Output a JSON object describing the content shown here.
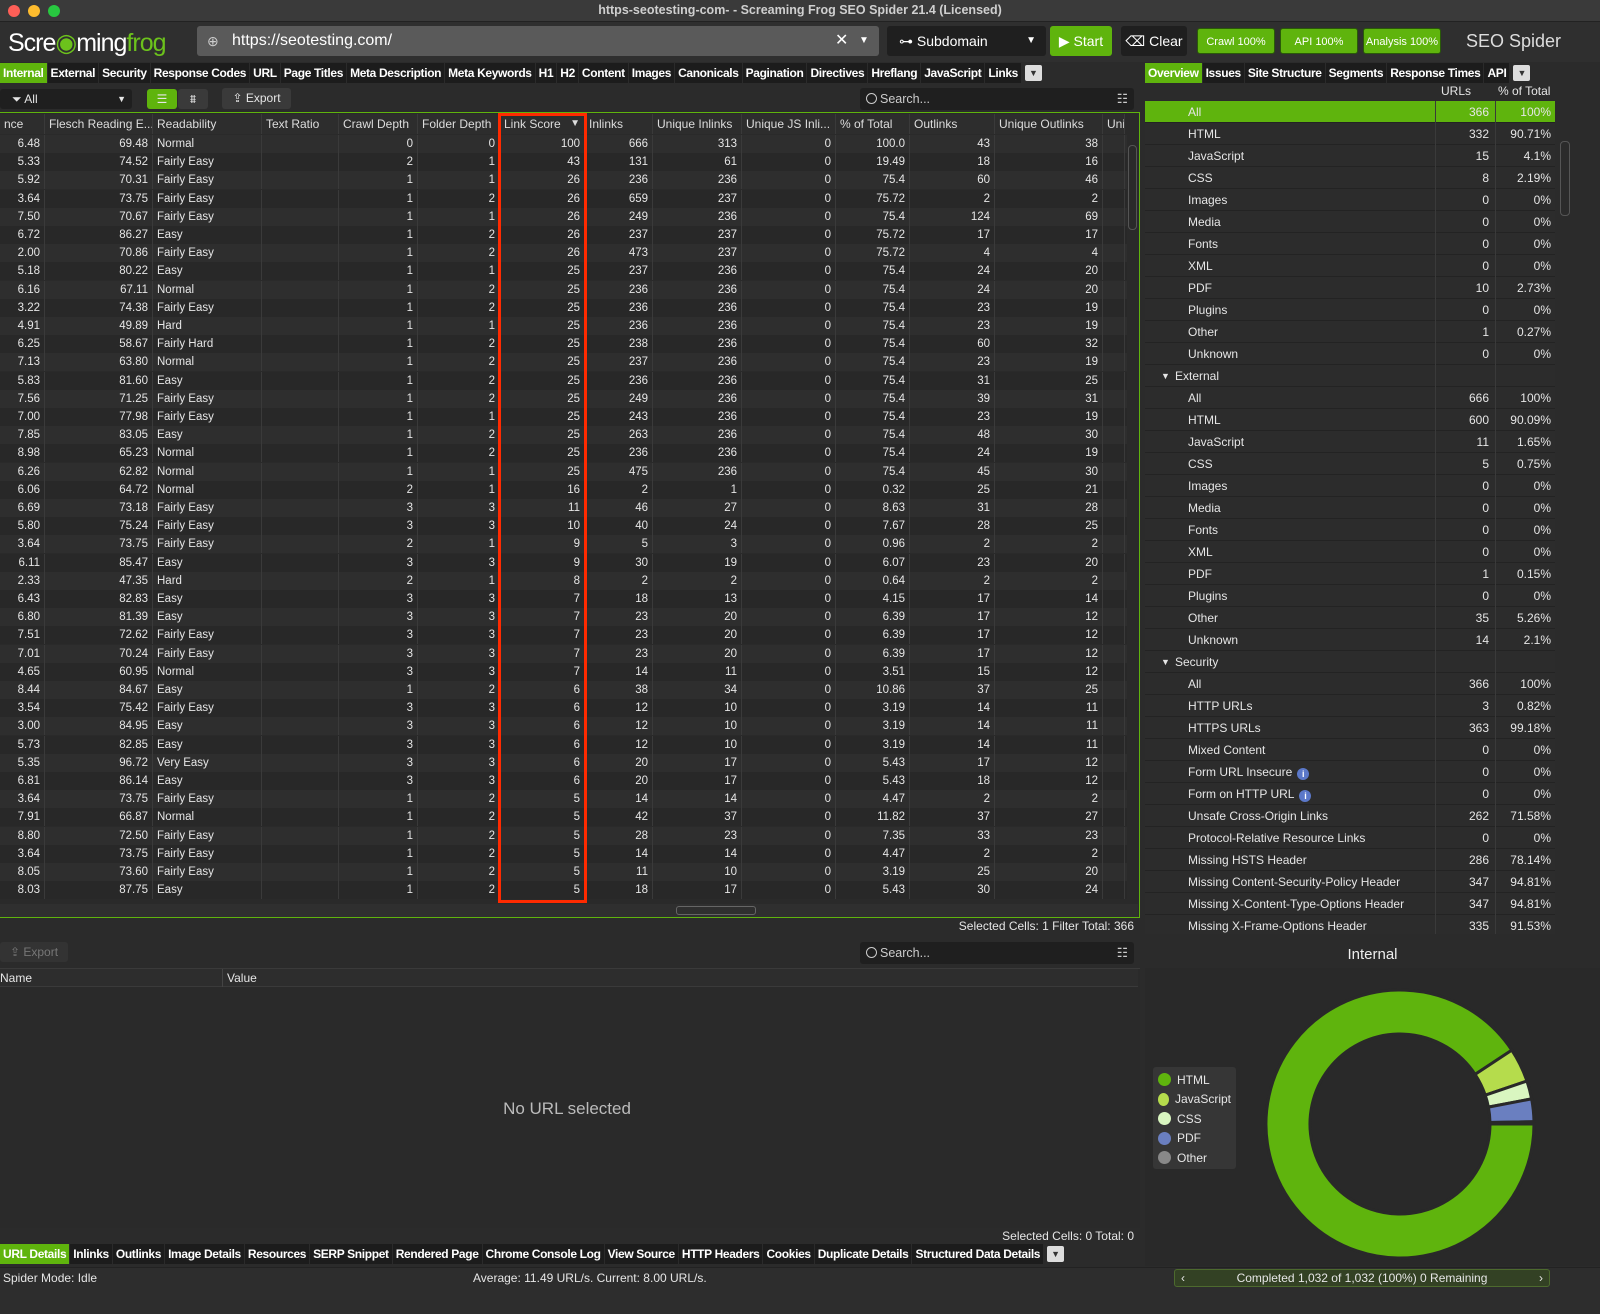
{
  "window": {
    "title": "https-seotesting-com- - Screaming Frog SEO Spider 21.4 (Licensed)"
  },
  "toolbar": {
    "logo": "Screamingfrog",
    "url": "https://seotesting.com/",
    "mode": "Subdomain",
    "start": "Start",
    "clear": "Clear",
    "crawl": "Crawl 100%",
    "api": "API 100%",
    "analysis": "Analysis 100%",
    "brand": "SEO Spider"
  },
  "main_tabs": [
    "Internal",
    "External",
    "Security",
    "Response Codes",
    "URL",
    "Page Titles",
    "Meta Description",
    "Meta Keywords",
    "H1",
    "H2",
    "Content",
    "Images",
    "Canonicals",
    "Pagination",
    "Directives",
    "Hreflang",
    "JavaScript",
    "Links"
  ],
  "filter": {
    "value": "All",
    "export": "Export",
    "search_placeholder": "Search..."
  },
  "table": {
    "columns": [
      "nce",
      "Flesch Reading E...",
      "Readability",
      "Text Ratio",
      "Crawl Depth",
      "Folder Depth",
      "Link Score",
      "Inlinks",
      "Unique Inlinks",
      "Unique JS Inli...",
      "% of Total",
      "Outlinks",
      "Unique Outlinks",
      "Uni"
    ],
    "sorted_column": "Link Score",
    "rows": [
      [
        "6.48",
        "69.48",
        "Normal",
        "",
        "0",
        "0",
        "100",
        "666",
        "313",
        "0",
        "100.0",
        "43",
        "38"
      ],
      [
        "5.33",
        "74.52",
        "Fairly Easy",
        "",
        "2",
        "1",
        "43",
        "131",
        "61",
        "0",
        "19.49",
        "18",
        "16"
      ],
      [
        "5.92",
        "70.31",
        "Fairly Easy",
        "",
        "1",
        "1",
        "26",
        "236",
        "236",
        "0",
        "75.4",
        "60",
        "46"
      ],
      [
        "3.64",
        "73.75",
        "Fairly Easy",
        "",
        "1",
        "2",
        "26",
        "659",
        "237",
        "0",
        "75.72",
        "2",
        "2"
      ],
      [
        "7.50",
        "70.67",
        "Fairly Easy",
        "",
        "1",
        "1",
        "26",
        "249",
        "236",
        "0",
        "75.4",
        "124",
        "69"
      ],
      [
        "6.72",
        "86.27",
        "Easy",
        "",
        "1",
        "2",
        "26",
        "237",
        "237",
        "0",
        "75.72",
        "17",
        "17"
      ],
      [
        "2.00",
        "70.86",
        "Fairly Easy",
        "",
        "1",
        "2",
        "26",
        "473",
        "237",
        "0",
        "75.72",
        "4",
        "4"
      ],
      [
        "5.18",
        "80.22",
        "Easy",
        "",
        "1",
        "1",
        "25",
        "237",
        "236",
        "0",
        "75.4",
        "24",
        "20"
      ],
      [
        "6.16",
        "67.11",
        "Normal",
        "",
        "1",
        "2",
        "25",
        "236",
        "236",
        "0",
        "75.4",
        "24",
        "20"
      ],
      [
        "3.22",
        "74.38",
        "Fairly Easy",
        "",
        "1",
        "2",
        "25",
        "236",
        "236",
        "0",
        "75.4",
        "23",
        "19"
      ],
      [
        "4.91",
        "49.89",
        "Hard",
        "",
        "1",
        "1",
        "25",
        "236",
        "236",
        "0",
        "75.4",
        "23",
        "19"
      ],
      [
        "6.25",
        "58.67",
        "Fairly Hard",
        "",
        "1",
        "2",
        "25",
        "238",
        "236",
        "0",
        "75.4",
        "60",
        "32"
      ],
      [
        "7.13",
        "63.80",
        "Normal",
        "",
        "1",
        "2",
        "25",
        "237",
        "236",
        "0",
        "75.4",
        "23",
        "19"
      ],
      [
        "5.83",
        "81.60",
        "Easy",
        "",
        "1",
        "2",
        "25",
        "236",
        "236",
        "0",
        "75.4",
        "31",
        "25"
      ],
      [
        "7.56",
        "71.25",
        "Fairly Easy",
        "",
        "1",
        "2",
        "25",
        "249",
        "236",
        "0",
        "75.4",
        "39",
        "31"
      ],
      [
        "7.00",
        "77.98",
        "Fairly Easy",
        "",
        "1",
        "1",
        "25",
        "243",
        "236",
        "0",
        "75.4",
        "23",
        "19"
      ],
      [
        "7.85",
        "83.05",
        "Easy",
        "",
        "1",
        "2",
        "25",
        "263",
        "236",
        "0",
        "75.4",
        "48",
        "30"
      ],
      [
        "8.98",
        "65.23",
        "Normal",
        "",
        "1",
        "2",
        "25",
        "236",
        "236",
        "0",
        "75.4",
        "24",
        "19"
      ],
      [
        "6.26",
        "62.82",
        "Normal",
        "",
        "1",
        "1",
        "25",
        "475",
        "236",
        "0",
        "75.4",
        "45",
        "30"
      ],
      [
        "6.06",
        "64.72",
        "Normal",
        "",
        "2",
        "1",
        "16",
        "2",
        "1",
        "0",
        "0.32",
        "25",
        "21"
      ],
      [
        "6.69",
        "73.18",
        "Fairly Easy",
        "",
        "3",
        "3",
        "11",
        "46",
        "27",
        "0",
        "8.63",
        "31",
        "28"
      ],
      [
        "5.80",
        "75.24",
        "Fairly Easy",
        "",
        "3",
        "3",
        "10",
        "40",
        "24",
        "0",
        "7.67",
        "28",
        "25"
      ],
      [
        "3.64",
        "73.75",
        "Fairly Easy",
        "",
        "2",
        "1",
        "9",
        "5",
        "3",
        "0",
        "0.96",
        "2",
        "2"
      ],
      [
        "6.11",
        "85.47",
        "Easy",
        "",
        "3",
        "3",
        "9",
        "30",
        "19",
        "0",
        "6.07",
        "23",
        "20"
      ],
      [
        "2.33",
        "47.35",
        "Hard",
        "",
        "2",
        "1",
        "8",
        "2",
        "2",
        "0",
        "0.64",
        "2",
        "2"
      ],
      [
        "6.43",
        "82.83",
        "Easy",
        "",
        "3",
        "3",
        "7",
        "18",
        "13",
        "0",
        "4.15",
        "17",
        "14"
      ],
      [
        "6.80",
        "81.39",
        "Easy",
        "",
        "3",
        "3",
        "7",
        "23",
        "20",
        "0",
        "6.39",
        "17",
        "12"
      ],
      [
        "7.51",
        "72.62",
        "Fairly Easy",
        "",
        "3",
        "3",
        "7",
        "23",
        "20",
        "0",
        "6.39",
        "17",
        "12"
      ],
      [
        "7.01",
        "70.24",
        "Fairly Easy",
        "",
        "3",
        "3",
        "7",
        "23",
        "20",
        "0",
        "6.39",
        "17",
        "12"
      ],
      [
        "4.65",
        "60.95",
        "Normal",
        "",
        "3",
        "3",
        "7",
        "14",
        "11",
        "0",
        "3.51",
        "15",
        "12"
      ],
      [
        "8.44",
        "84.67",
        "Easy",
        "",
        "1",
        "2",
        "6",
        "38",
        "34",
        "0",
        "10.86",
        "37",
        "25"
      ],
      [
        "3.54",
        "75.42",
        "Fairly Easy",
        "",
        "3",
        "3",
        "6",
        "12",
        "10",
        "0",
        "3.19",
        "14",
        "11"
      ],
      [
        "3.00",
        "84.95",
        "Easy",
        "",
        "3",
        "3",
        "6",
        "12",
        "10",
        "0",
        "3.19",
        "14",
        "11"
      ],
      [
        "5.73",
        "82.85",
        "Easy",
        "",
        "3",
        "3",
        "6",
        "12",
        "10",
        "0",
        "3.19",
        "14",
        "11"
      ],
      [
        "5.35",
        "96.72",
        "Very Easy",
        "",
        "3",
        "3",
        "6",
        "20",
        "17",
        "0",
        "5.43",
        "17",
        "12"
      ],
      [
        "6.81",
        "86.14",
        "Easy",
        "",
        "3",
        "3",
        "6",
        "20",
        "17",
        "0",
        "5.43",
        "18",
        "12"
      ],
      [
        "3.64",
        "73.75",
        "Fairly Easy",
        "",
        "1",
        "2",
        "5",
        "14",
        "14",
        "0",
        "4.47",
        "2",
        "2"
      ],
      [
        "7.91",
        "66.87",
        "Normal",
        "",
        "1",
        "2",
        "5",
        "42",
        "37",
        "0",
        "11.82",
        "37",
        "27"
      ],
      [
        "8.80",
        "72.50",
        "Fairly Easy",
        "",
        "1",
        "2",
        "5",
        "28",
        "23",
        "0",
        "7.35",
        "33",
        "23"
      ],
      [
        "3.64",
        "73.75",
        "Fairly Easy",
        "",
        "1",
        "2",
        "5",
        "14",
        "14",
        "0",
        "4.47",
        "2",
        "2"
      ],
      [
        "8.05",
        "73.60",
        "Fairly Easy",
        "",
        "1",
        "2",
        "5",
        "11",
        "10",
        "0",
        "3.19",
        "25",
        "20"
      ],
      [
        "8.03",
        "87.75",
        "Easy",
        "",
        "1",
        "2",
        "5",
        "18",
        "17",
        "0",
        "5.43",
        "30",
        "24"
      ]
    ],
    "status": "Selected Cells:  1  Filter Total:  366"
  },
  "lower": {
    "export": "Export",
    "search_placeholder": "Search...",
    "col_name": "Name",
    "col_value": "Value",
    "empty": "No URL selected",
    "status": "Selected Cells:  0  Total:  0",
    "tabs": [
      "URL Details",
      "Inlinks",
      "Outlinks",
      "Image Details",
      "Resources",
      "SERP Snippet",
      "Rendered Page",
      "Chrome Console Log",
      "View Source",
      "HTTP Headers",
      "Cookies",
      "Duplicate Details",
      "Structured Data Details"
    ]
  },
  "statusbar": {
    "mode": "Spider Mode: Idle",
    "speed": "Average: 11.49 URL/s. Current: 8.00 URL/s.",
    "progress": "Completed 1,032 of 1,032 (100%) 0 Remaining"
  },
  "right": {
    "tabs": [
      "Overview",
      "Issues",
      "Site Structure",
      "Segments",
      "Response Times",
      "API"
    ],
    "col_urls": "URLs",
    "col_pct": "% of Total",
    "rows": [
      {
        "n": "All",
        "u": "366",
        "p": "100%",
        "sel": true
      },
      {
        "n": "HTML",
        "u": "332",
        "p": "90.71%"
      },
      {
        "n": "JavaScript",
        "u": "15",
        "p": "4.1%"
      },
      {
        "n": "CSS",
        "u": "8",
        "p": "2.19%"
      },
      {
        "n": "Images",
        "u": "0",
        "p": "0%"
      },
      {
        "n": "Media",
        "u": "0",
        "p": "0%"
      },
      {
        "n": "Fonts",
        "u": "0",
        "p": "0%"
      },
      {
        "n": "XML",
        "u": "0",
        "p": "0%"
      },
      {
        "n": "PDF",
        "u": "10",
        "p": "2.73%"
      },
      {
        "n": "Plugins",
        "u": "0",
        "p": "0%"
      },
      {
        "n": "Other",
        "u": "1",
        "p": "0.27%"
      },
      {
        "n": "Unknown",
        "u": "0",
        "p": "0%"
      },
      {
        "n": "External",
        "sec": true
      },
      {
        "n": "All",
        "u": "666",
        "p": "100%"
      },
      {
        "n": "HTML",
        "u": "600",
        "p": "90.09%"
      },
      {
        "n": "JavaScript",
        "u": "11",
        "p": "1.65%"
      },
      {
        "n": "CSS",
        "u": "5",
        "p": "0.75%"
      },
      {
        "n": "Images",
        "u": "0",
        "p": "0%"
      },
      {
        "n": "Media",
        "u": "0",
        "p": "0%"
      },
      {
        "n": "Fonts",
        "u": "0",
        "p": "0%"
      },
      {
        "n": "XML",
        "u": "0",
        "p": "0%"
      },
      {
        "n": "PDF",
        "u": "1",
        "p": "0.15%"
      },
      {
        "n": "Plugins",
        "u": "0",
        "p": "0%"
      },
      {
        "n": "Other",
        "u": "35",
        "p": "5.26%"
      },
      {
        "n": "Unknown",
        "u": "14",
        "p": "2.1%"
      },
      {
        "n": "Security",
        "sec": true
      },
      {
        "n": "All",
        "u": "366",
        "p": "100%"
      },
      {
        "n": "HTTP URLs",
        "u": "3",
        "p": "0.82%"
      },
      {
        "n": "HTTPS URLs",
        "u": "363",
        "p": "99.18%"
      },
      {
        "n": "Mixed Content",
        "u": "0",
        "p": "0%"
      },
      {
        "n": "Form URL Insecure",
        "u": "0",
        "p": "0%",
        "info": true
      },
      {
        "n": "Form on HTTP URL",
        "u": "0",
        "p": "0%",
        "info": true
      },
      {
        "n": "Unsafe Cross-Origin Links",
        "u": "262",
        "p": "71.58%"
      },
      {
        "n": "Protocol-Relative Resource Links",
        "u": "0",
        "p": "0%"
      },
      {
        "n": "Missing HSTS Header",
        "u": "286",
        "p": "78.14%"
      },
      {
        "n": "Missing Content-Security-Policy Header",
        "u": "347",
        "p": "94.81%"
      },
      {
        "n": "Missing X-Content-Type-Options Header",
        "u": "347",
        "p": "94.81%"
      },
      {
        "n": "Missing X-Frame-Options Header",
        "u": "335",
        "p": "91.53%"
      }
    ]
  },
  "chart_data": {
    "type": "pie",
    "title": "Internal",
    "donut": true,
    "legend": "left",
    "categories": [
      "HTML",
      "JavaScript",
      "CSS",
      "PDF",
      "Other"
    ],
    "values": [
      332,
      15,
      8,
      10,
      1
    ],
    "colors": [
      "#5fb40d",
      "#b5dc4c",
      "#d9f6c0",
      "#6a7fc0",
      "#888888"
    ]
  },
  "colors": {
    "accent": "#5fb40d",
    "highlight_box": "#ff2a00"
  }
}
